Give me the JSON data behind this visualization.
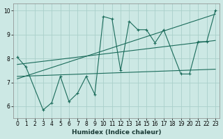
{
  "xlabel": "Humidex (Indice chaleur)",
  "bg_color": "#cce8e4",
  "grid_color": "#aacfca",
  "line_color": "#1a6b5a",
  "xlim": [
    -0.5,
    23.5
  ],
  "ylim": [
    5.5,
    10.3
  ],
  "yticks": [
    6,
    7,
    8,
    9,
    10
  ],
  "xticks": [
    0,
    1,
    2,
    3,
    4,
    5,
    6,
    7,
    8,
    9,
    10,
    11,
    12,
    13,
    14,
    15,
    16,
    17,
    18,
    19,
    20,
    21,
    22,
    23
  ],
  "series1_x": [
    0,
    1,
    3,
    4,
    5,
    6,
    7,
    8,
    9,
    10,
    11,
    12,
    13,
    14,
    15,
    16,
    17,
    19,
    20,
    21,
    22,
    23
  ],
  "series1_y": [
    8.05,
    7.65,
    5.85,
    6.15,
    7.25,
    6.2,
    6.55,
    7.25,
    6.5,
    9.75,
    9.65,
    7.5,
    9.55,
    9.2,
    9.2,
    8.65,
    9.2,
    7.35,
    7.35,
    8.7,
    8.7,
    10.0
  ],
  "series2_x": [
    0,
    23
  ],
  "series2_y": [
    7.75,
    8.75
  ],
  "series3_x": [
    0,
    23
  ],
  "series3_y": [
    7.15,
    9.85
  ],
  "series4_x": [
    0,
    23
  ],
  "series4_y": [
    7.25,
    7.55
  ]
}
